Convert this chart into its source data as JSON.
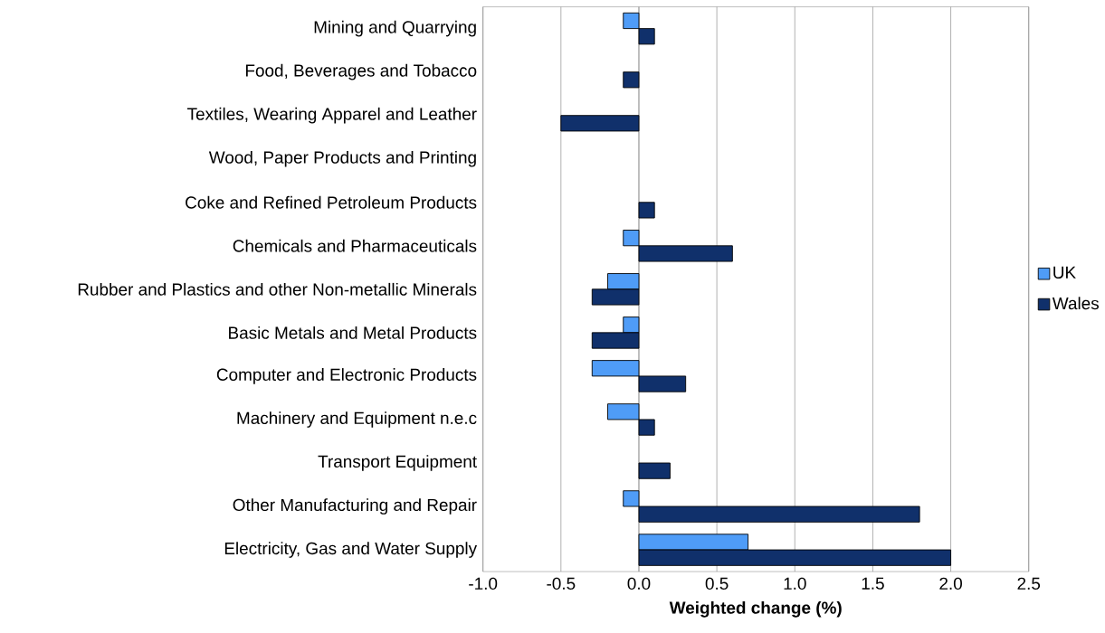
{
  "chart_data": {
    "type": "bar",
    "orientation": "horizontal",
    "xlabel": "Weighted change (%)",
    "categories": [
      "Mining and Quarrying",
      "Food, Beverages and Tobacco",
      "Textiles, Wearing Apparel and Leather",
      "Wood, Paper Products and Printing",
      "Coke and Refined Petroleum Products",
      "Chemicals and Pharmaceuticals",
      "Rubber and Plastics and other Non-metallic Minerals",
      "Basic Metals and Metal Products",
      "Computer and Electronic Products",
      "Machinery and Equipment n.e.c",
      "Transport Equipment",
      "Other Manufacturing and Repair",
      "Electricity, Gas and Water Supply"
    ],
    "series": [
      {
        "name": "UK",
        "color": "#4f9cf7",
        "values": [
          -0.1,
          null,
          null,
          null,
          null,
          -0.1,
          -0.2,
          -0.1,
          -0.3,
          -0.2,
          null,
          -0.1,
          0.7
        ]
      },
      {
        "name": "Wales",
        "color": "#10306b",
        "values": [
          0.1,
          -0.1,
          -0.5,
          null,
          0.1,
          0.6,
          -0.3,
          -0.3,
          0.3,
          0.1,
          0.2,
          1.8,
          2.0
        ]
      }
    ],
    "xlim": [
      -1.0,
      2.5
    ],
    "xticks": [
      {
        "value": -1.0,
        "label": "-1.0"
      },
      {
        "value": -0.5,
        "label": "-0.5"
      },
      {
        "value": 0,
        "label": "0.0"
      },
      {
        "value": 0.5,
        "label": "0.5"
      },
      {
        "value": 1.0,
        "label": "1.0"
      },
      {
        "value": 1.5,
        "label": "1.5"
      },
      {
        "value": 2.0,
        "label": "2.0"
      },
      {
        "value": 2.5,
        "label": "2.5"
      }
    ],
    "grid": "x",
    "legend": "right"
  }
}
